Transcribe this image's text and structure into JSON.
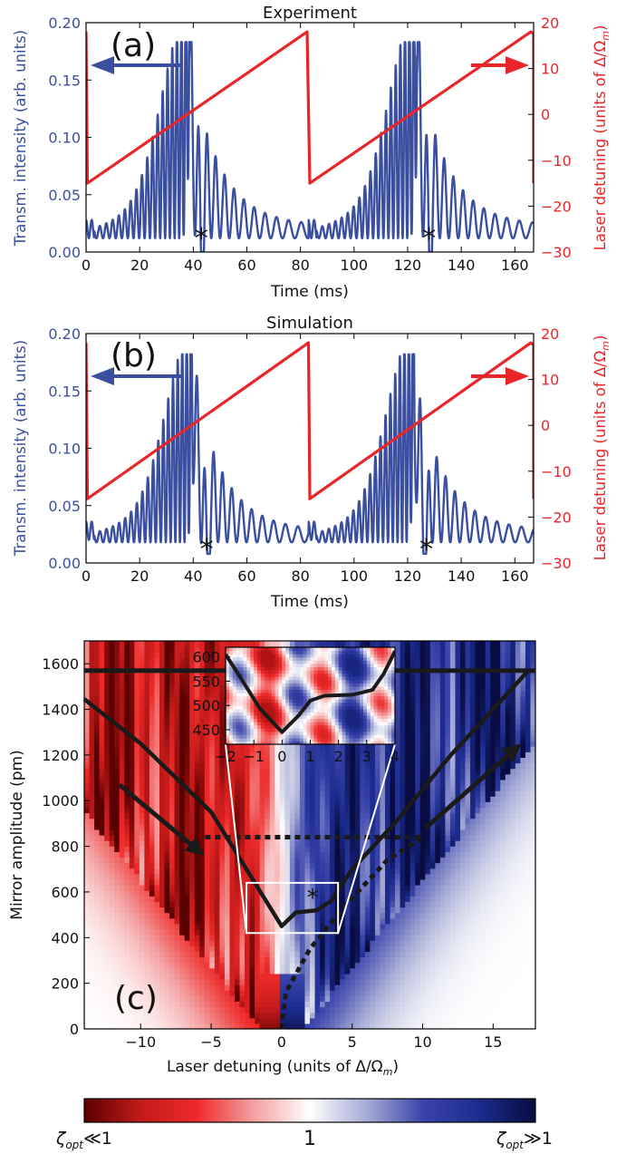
{
  "colors": {
    "transmission": "#3a4fa0",
    "detuning": "#e8262a",
    "path": "#1a1a1a",
    "colormap": [
      "#5a0000",
      "#c41a1a",
      "#ee2a2a",
      "#f4a0a0",
      "#ffffff",
      "#a6acd6",
      "#3a44aa",
      "#1c2c8e",
      "#080c40"
    ]
  },
  "chart_data": [
    {
      "panel": "(a)",
      "type": "line",
      "title": "Experiment",
      "xlabel": "Time (ms)",
      "ylabel_left": "Transm. intensity (arb. units)",
      "ylabel_right": "Laser detuning (units of Δ/Ω",
      "ylabel_right_sub": "m",
      "xlim": [
        0,
        167
      ],
      "ylim_left": [
        0,
        0.2
      ],
      "ylim_right": [
        -30,
        20
      ],
      "xticks": [
        "0",
        "20",
        "40",
        "60",
        "80",
        "100",
        "120",
        "140",
        "160"
      ],
      "yticks_left": [
        "0.00",
        "0.05",
        "0.10",
        "0.15",
        "0.20"
      ],
      "yticks_right": [
        "−30",
        "−20",
        "−10",
        "0",
        "10",
        "20"
      ],
      "annotation": "*",
      "annotation_positions": [
        [
          43,
          0.013
        ],
        [
          128,
          0.013
        ]
      ],
      "series": [
        {
          "axis": "left",
          "kind": "oscillating transmission",
          "peak_times": [
            38.5,
            123.5
          ],
          "peak_max": 0.183,
          "baseline": 0.045,
          "dip_times": [
            43,
            128
          ],
          "dip_min": 0.015
        },
        {
          "axis": "right",
          "kind": "sawtooth detuning",
          "ramps": [
            {
              "t_start": 0.5,
              "t_end": 82.5
            },
            {
              "t_start": 83.5,
              "t_end": 166
            }
          ],
          "value_start": -15,
          "value_end": 18
        }
      ]
    },
    {
      "panel": "(b)",
      "type": "line",
      "title": "Simulation",
      "xlabel": "Time (ms)",
      "ylabel_left": "Transm. intensity (arb. units)",
      "ylabel_right": "Laser detuning (units of Δ/Ω",
      "ylabel_right_sub": "m",
      "xlim": [
        0,
        167
      ],
      "ylim_left": [
        0,
        0.2
      ],
      "ylim_right": [
        -30,
        20
      ],
      "xticks": [
        "0",
        "20",
        "40",
        "60",
        "80",
        "100",
        "120",
        "140",
        "160"
      ],
      "yticks_left": [
        "0.00",
        "0.05",
        "0.10",
        "0.15",
        "0.20"
      ],
      "yticks_right": [
        "−30",
        "−20",
        "−10",
        "0",
        "10",
        "20"
      ],
      "annotation": "*",
      "annotation_positions": [
        [
          45,
          0.013
        ],
        [
          127,
          0.013
        ]
      ],
      "series": [
        {
          "axis": "left",
          "kind": "oscillating transmission",
          "peak_times": [
            40,
            122.5
          ],
          "peak_max": 0.182,
          "baseline": 0.03,
          "dip_times": [
            45,
            127
          ],
          "dip_min": 0.025
        },
        {
          "axis": "right",
          "kind": "sawtooth detuning",
          "ramps": [
            {
              "t_start": 0.5,
              "t_end": 83
            },
            {
              "t_start": 83.5,
              "t_end": 166
            }
          ],
          "value_start": -16,
          "value_end": 18
        }
      ]
    },
    {
      "panel": "(c)",
      "type": "heatmap",
      "xlabel": "Laser detuning (units of Δ/Ω",
      "xlabel_sub": "m",
      "ylabel": "Mirror amplitude (pm)",
      "xlim": [
        -14,
        18
      ],
      "ylim": [
        0,
        1700
      ],
      "xticks": [
        "−10",
        "−5",
        "0",
        "5",
        "10",
        "15"
      ],
      "yticks": [
        "0",
        "200",
        "400",
        "600",
        "800",
        "1000",
        "1200",
        "1400",
        "1600"
      ],
      "annotation": "*",
      "path": [
        [
          -14,
          1445
        ],
        [
          -10,
          1250
        ],
        [
          -5,
          950
        ],
        [
          -2,
          650
        ],
        [
          0,
          450
        ],
        [
          1,
          510
        ],
        [
          2.5,
          520
        ],
        [
          3.5,
          560
        ],
        [
          5,
          700
        ],
        [
          8,
          900
        ],
        [
          12,
          1200
        ],
        [
          15,
          1400
        ],
        [
          17.5,
          1570
        ]
      ],
      "top_line": {
        "y": 1570,
        "x_from": -14,
        "x_to": 18
      },
      "dotted_line": [
        [
          0,
          0
        ],
        [
          0.3,
          160
        ],
        [
          2,
          350
        ],
        [
          4.5,
          540
        ],
        [
          7.5,
          740
        ],
        [
          10,
          840
        ],
        [
          -5.5,
          840
        ]
      ],
      "arrows": [
        {
          "from": [
            -11.5,
            1070
          ],
          "to": [
            -5.5,
            760
          ]
        },
        {
          "from": [
            10.2,
            880
          ],
          "to": [
            17,
            1250
          ]
        }
      ],
      "zoom_box": {
        "x": [
          -2.5,
          4
        ],
        "y": [
          420,
          640
        ]
      },
      "inset": {
        "xlim": [
          -2,
          4
        ],
        "ylim": [
          420,
          620
        ],
        "xticks": [
          "−2",
          "−1",
          "0",
          "1",
          "2",
          "3",
          "4"
        ],
        "yticks": [
          "450",
          "500",
          "550",
          "600"
        ],
        "path": [
          [
            -2,
            605
          ],
          [
            -1.5,
            560
          ],
          [
            -0.8,
            495
          ],
          [
            0,
            445
          ],
          [
            0.6,
            480
          ],
          [
            1,
            510
          ],
          [
            1.5,
            520
          ],
          [
            2.5,
            522
          ],
          [
            3.2,
            532
          ],
          [
            3.6,
            565
          ],
          [
            4,
            612
          ]
        ]
      },
      "colorbar": {
        "left_label": "ζ",
        "left_sub": "opt",
        "left_rel": "≪1",
        "center_label": "1",
        "right_label": "ζ",
        "right_sub": "opt",
        "right_rel": "≫1"
      }
    }
  ]
}
